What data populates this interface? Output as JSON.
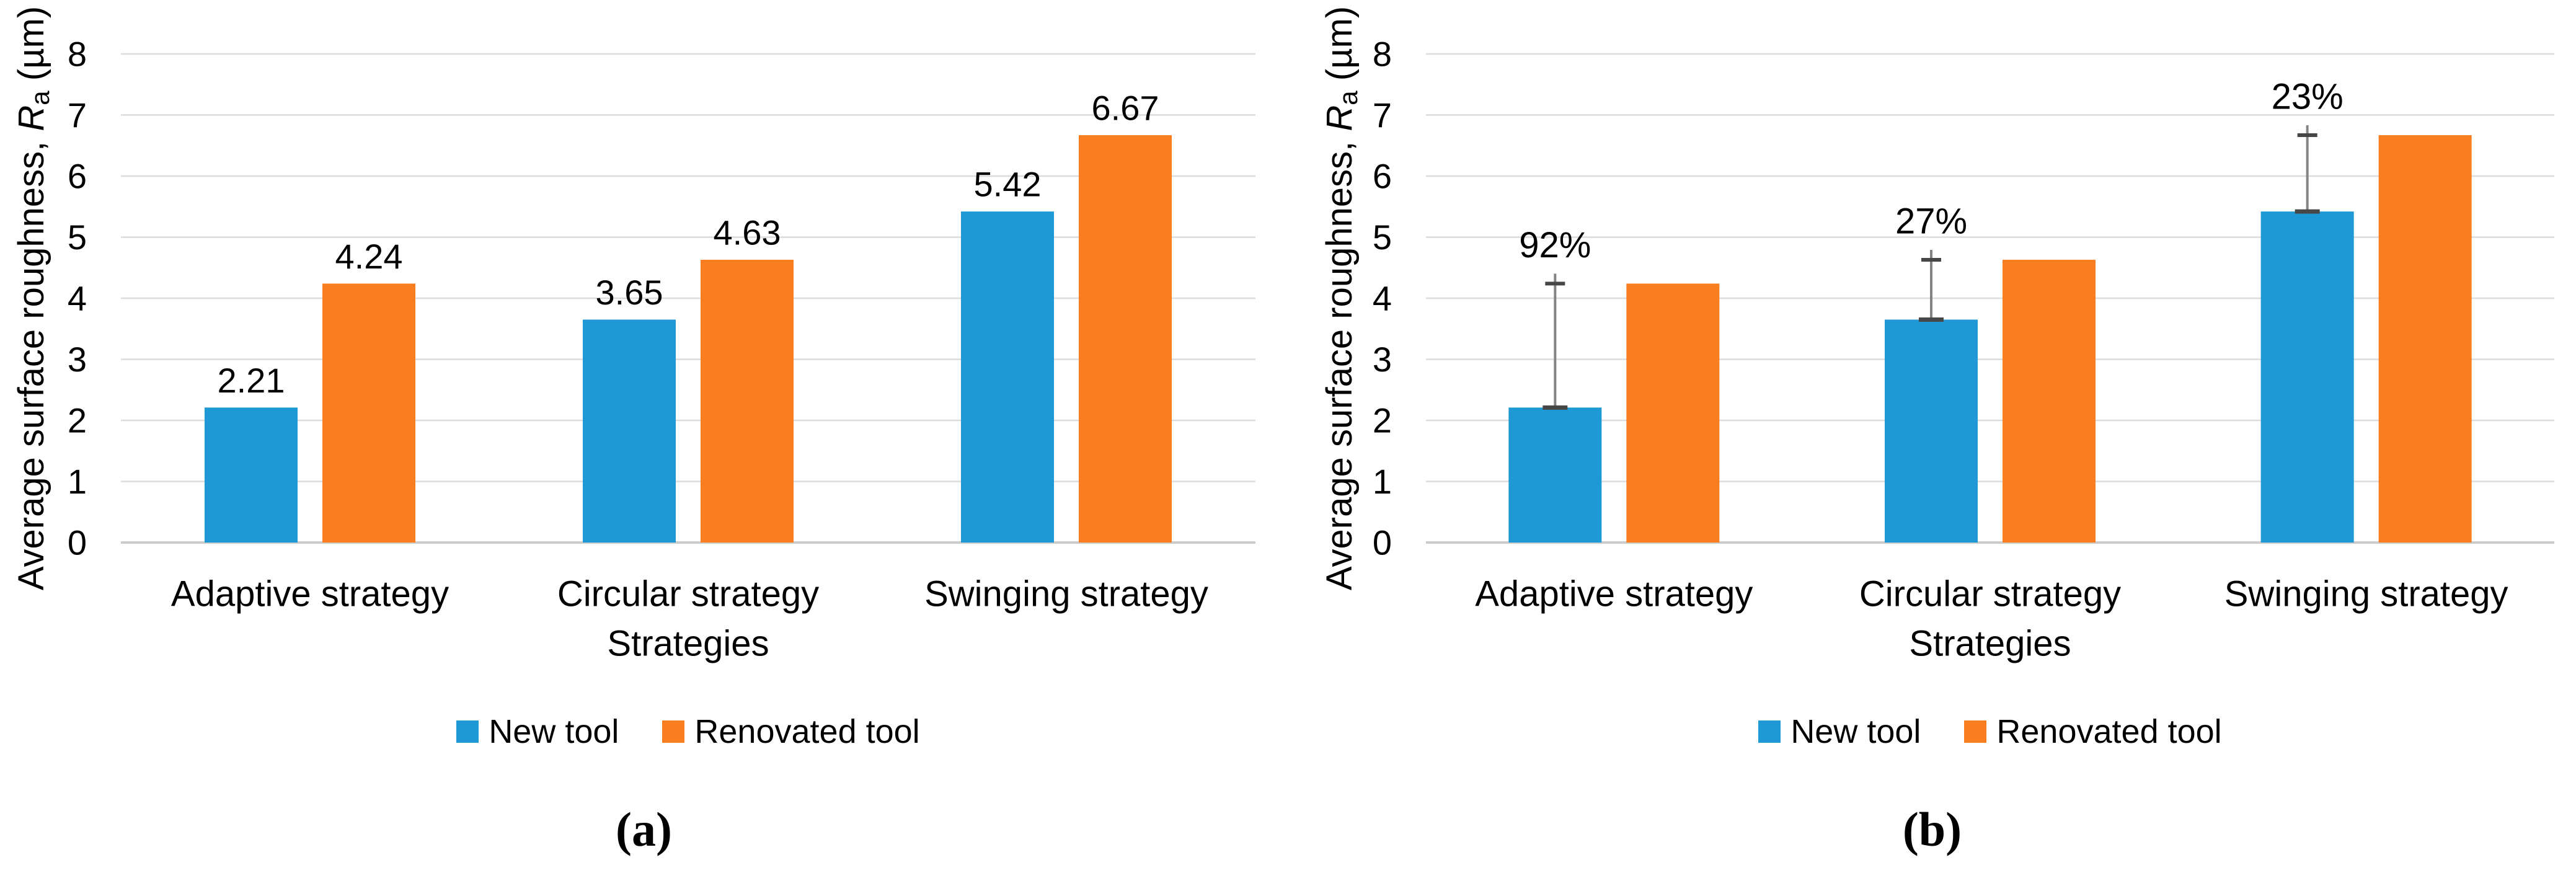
{
  "figure": {
    "background": "#ffffff",
    "text_color": "#000000",
    "grid_color": "#dcdcdc",
    "axis_line_color": "#cccccc",
    "error_bar_color": "#848484",
    "error_cap_color": "#474747",
    "series_colors": {
      "new_tool": "#1f98d6",
      "renovated_tool": "#fa7d20"
    }
  },
  "chart_data": [
    {
      "type": "bar",
      "caption": "(a)",
      "xlabel": "Strategies",
      "ylabel_parts": {
        "prefix": "Average surface roughness, ",
        "symbol": "R",
        "subscript": "a",
        "suffix": " (µm)"
      },
      "ylim": [
        0,
        8
      ],
      "yticks": [
        0,
        1,
        2,
        3,
        4,
        5,
        6,
        7,
        8
      ],
      "grid": true,
      "legend_position": "bottom",
      "categories": [
        "Adaptive strategy",
        "Circular strategy",
        "Swinging strategy"
      ],
      "series": [
        {
          "name": "New tool",
          "color": "#1f98d6",
          "values": [
            2.21,
            3.65,
            5.42
          ],
          "data_labels": [
            "2.21",
            "3.65",
            "5.42"
          ]
        },
        {
          "name": "Renovated tool",
          "color": "#fa7d20",
          "values": [
            4.24,
            4.63,
            6.67
          ],
          "data_labels": [
            "4.24",
            "4.63",
            "6.67"
          ]
        }
      ]
    },
    {
      "type": "bar",
      "caption": "(b)",
      "xlabel": "Strategies",
      "ylabel_parts": {
        "prefix": "Average surface roughness, ",
        "symbol": "R",
        "subscript": "a",
        "suffix": " (µm)"
      },
      "ylim": [
        0,
        8
      ],
      "yticks": [
        0,
        1,
        2,
        3,
        4,
        5,
        6,
        7,
        8
      ],
      "grid": true,
      "legend_position": "bottom",
      "categories": [
        "Adaptive strategy",
        "Circular strategy",
        "Swinging strategy"
      ],
      "series": [
        {
          "name": "New tool",
          "color": "#1f98d6",
          "values": [
            2.21,
            3.65,
            5.42
          ]
        },
        {
          "name": "Renovated tool",
          "color": "#fa7d20",
          "values": [
            4.24,
            4.63,
            6.67
          ]
        }
      ],
      "error_bars": {
        "series": "New tool",
        "upper": [
          4.24,
          4.63,
          6.67
        ],
        "labels": [
          "92%",
          "27%",
          "23%"
        ]
      }
    }
  ]
}
